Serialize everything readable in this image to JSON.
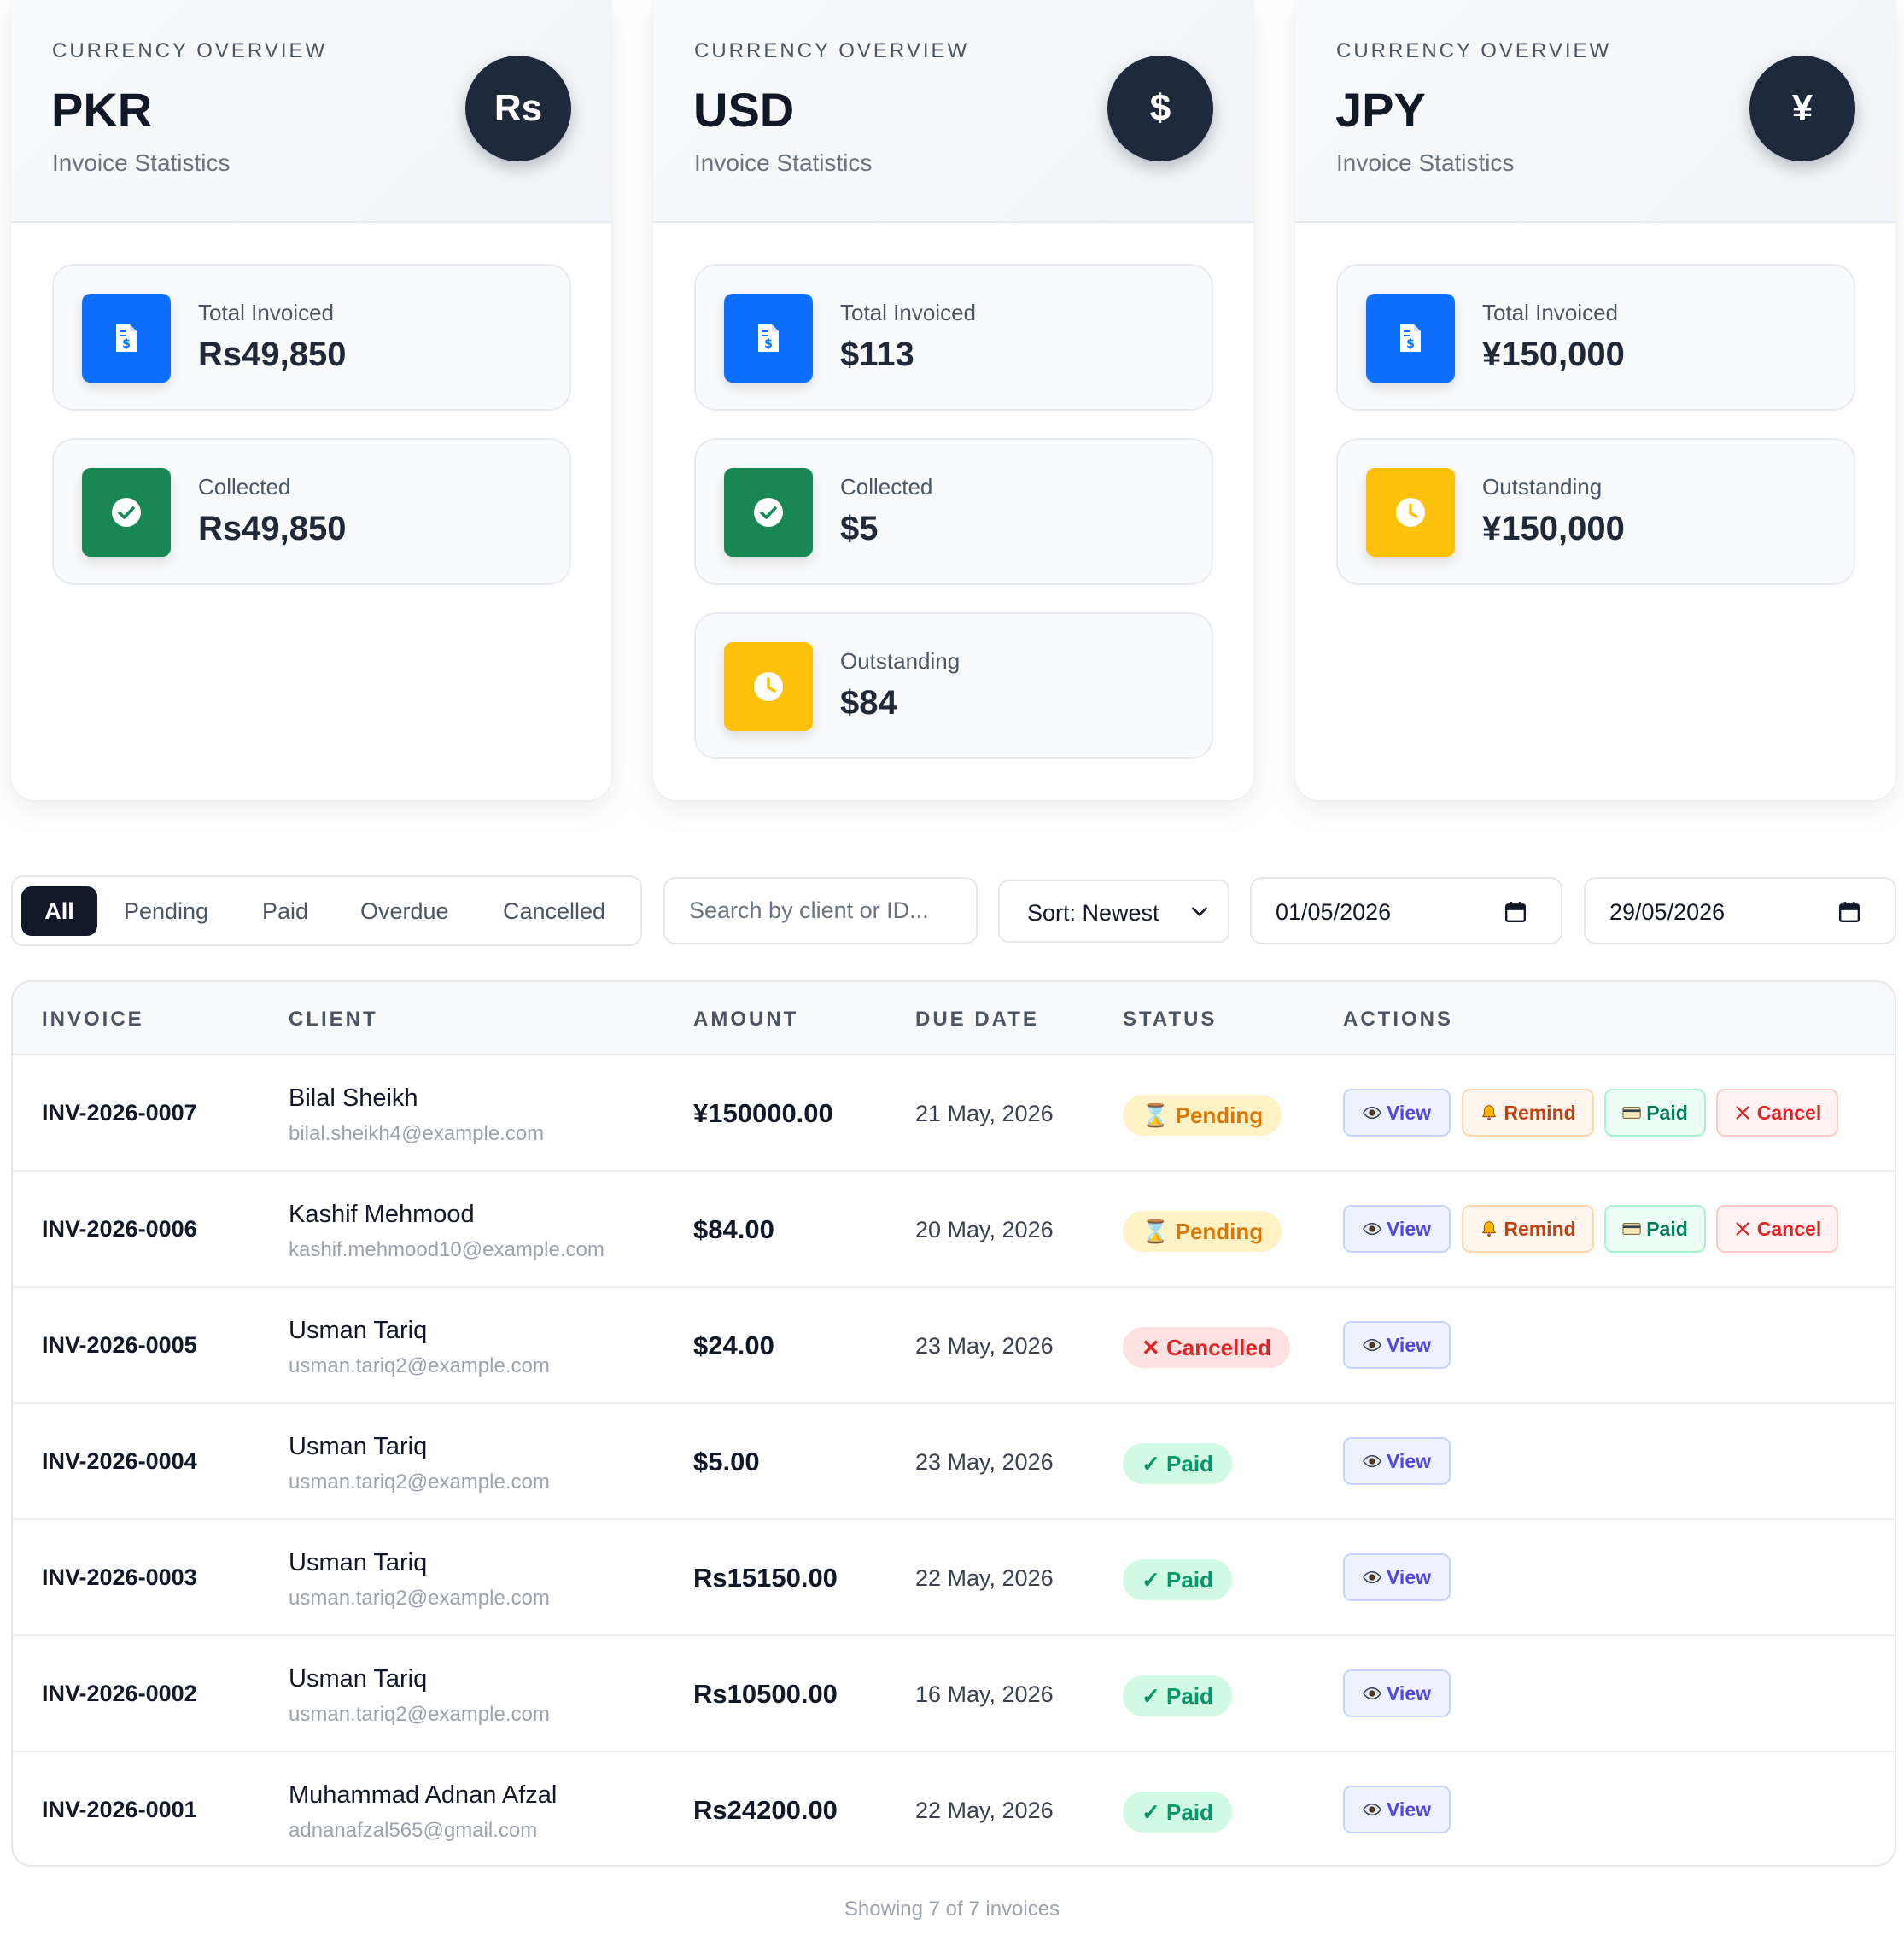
{
  "cards": [
    {
      "kicker": "CURRENCY OVERVIEW",
      "code": "PKR",
      "subtitle": "Invoice Statistics",
      "symbol": "Rs",
      "stats": [
        {
          "label": "Total Invoiced",
          "value": "Rs49,850",
          "icon": "invoice-icon",
          "color": "#0d6efd"
        },
        {
          "label": "Collected",
          "value": "Rs49,850",
          "icon": "check-circle-icon",
          "color": "#198754"
        }
      ]
    },
    {
      "kicker": "CURRENCY OVERVIEW",
      "code": "USD",
      "subtitle": "Invoice Statistics",
      "symbol": "$",
      "stats": [
        {
          "label": "Total Invoiced",
          "value": "$113",
          "icon": "invoice-icon",
          "color": "#0d6efd"
        },
        {
          "label": "Collected",
          "value": "$5",
          "icon": "check-circle-icon",
          "color": "#198754"
        },
        {
          "label": "Outstanding",
          "value": "$84",
          "icon": "clock-icon",
          "color": "#ffc107"
        }
      ]
    },
    {
      "kicker": "CURRENCY OVERVIEW",
      "code": "JPY",
      "subtitle": "Invoice Statistics",
      "symbol": "¥",
      "stats": [
        {
          "label": "Total Invoiced",
          "value": "¥150,000",
          "icon": "invoice-icon",
          "color": "#0d6efd"
        },
        {
          "label": "Outstanding",
          "value": "¥150,000",
          "icon": "clock-icon",
          "color": "#ffc107"
        }
      ]
    }
  ],
  "filters": {
    "tabs": [
      "All",
      "Pending",
      "Paid",
      "Overdue",
      "Cancelled"
    ],
    "active": "All",
    "search_placeholder": "Search by client or ID...",
    "sort_label": "Sort: Newest",
    "date_from": "01/05/2026",
    "date_to": "29/05/2026"
  },
  "table": {
    "headers": {
      "invoice": "INVOICE",
      "client": "CLIENT",
      "amount": "AMOUNT",
      "due_date": "DUE DATE",
      "status": "STATUS",
      "actions": "ACTIONS"
    },
    "action_labels": {
      "view": "View",
      "remind": "Remind",
      "paid": "Paid",
      "cancel": "Cancel"
    },
    "rows": [
      {
        "id": "INV-2026-0007",
        "client": "Bilal Sheikh",
        "email": "bilal.sheikh4@example.com",
        "amount": "¥150000.00",
        "due": "21 May, 2026",
        "status": "Pending",
        "status_key": "pending"
      },
      {
        "id": "INV-2026-0006",
        "client": "Kashif Mehmood",
        "email": "kashif.mehmood10@example.com",
        "amount": "$84.00",
        "due": "20 May, 2026",
        "status": "Pending",
        "status_key": "pending"
      },
      {
        "id": "INV-2026-0005",
        "client": "Usman Tariq",
        "email": "usman.tariq2@example.com",
        "amount": "$24.00",
        "due": "23 May, 2026",
        "status": "Cancelled",
        "status_key": "cancelled"
      },
      {
        "id": "INV-2026-0004",
        "client": "Usman Tariq",
        "email": "usman.tariq2@example.com",
        "amount": "$5.00",
        "due": "23 May, 2026",
        "status": "Paid",
        "status_key": "paid"
      },
      {
        "id": "INV-2026-0003",
        "client": "Usman Tariq",
        "email": "usman.tariq2@example.com",
        "amount": "Rs15150.00",
        "due": "22 May, 2026",
        "status": "Paid",
        "status_key": "paid"
      },
      {
        "id": "INV-2026-0002",
        "client": "Usman Tariq",
        "email": "usman.tariq2@example.com",
        "amount": "Rs10500.00",
        "due": "16 May, 2026",
        "status": "Paid",
        "status_key": "paid"
      },
      {
        "id": "INV-2026-0001",
        "client": "Muhammad Adnan Afzal",
        "email": "adnanafzal565@gmail.com",
        "amount": "Rs24200.00",
        "due": "22 May, 2026",
        "status": "Paid",
        "status_key": "paid"
      }
    ]
  },
  "footer": "Showing 7 of 7 invoices"
}
